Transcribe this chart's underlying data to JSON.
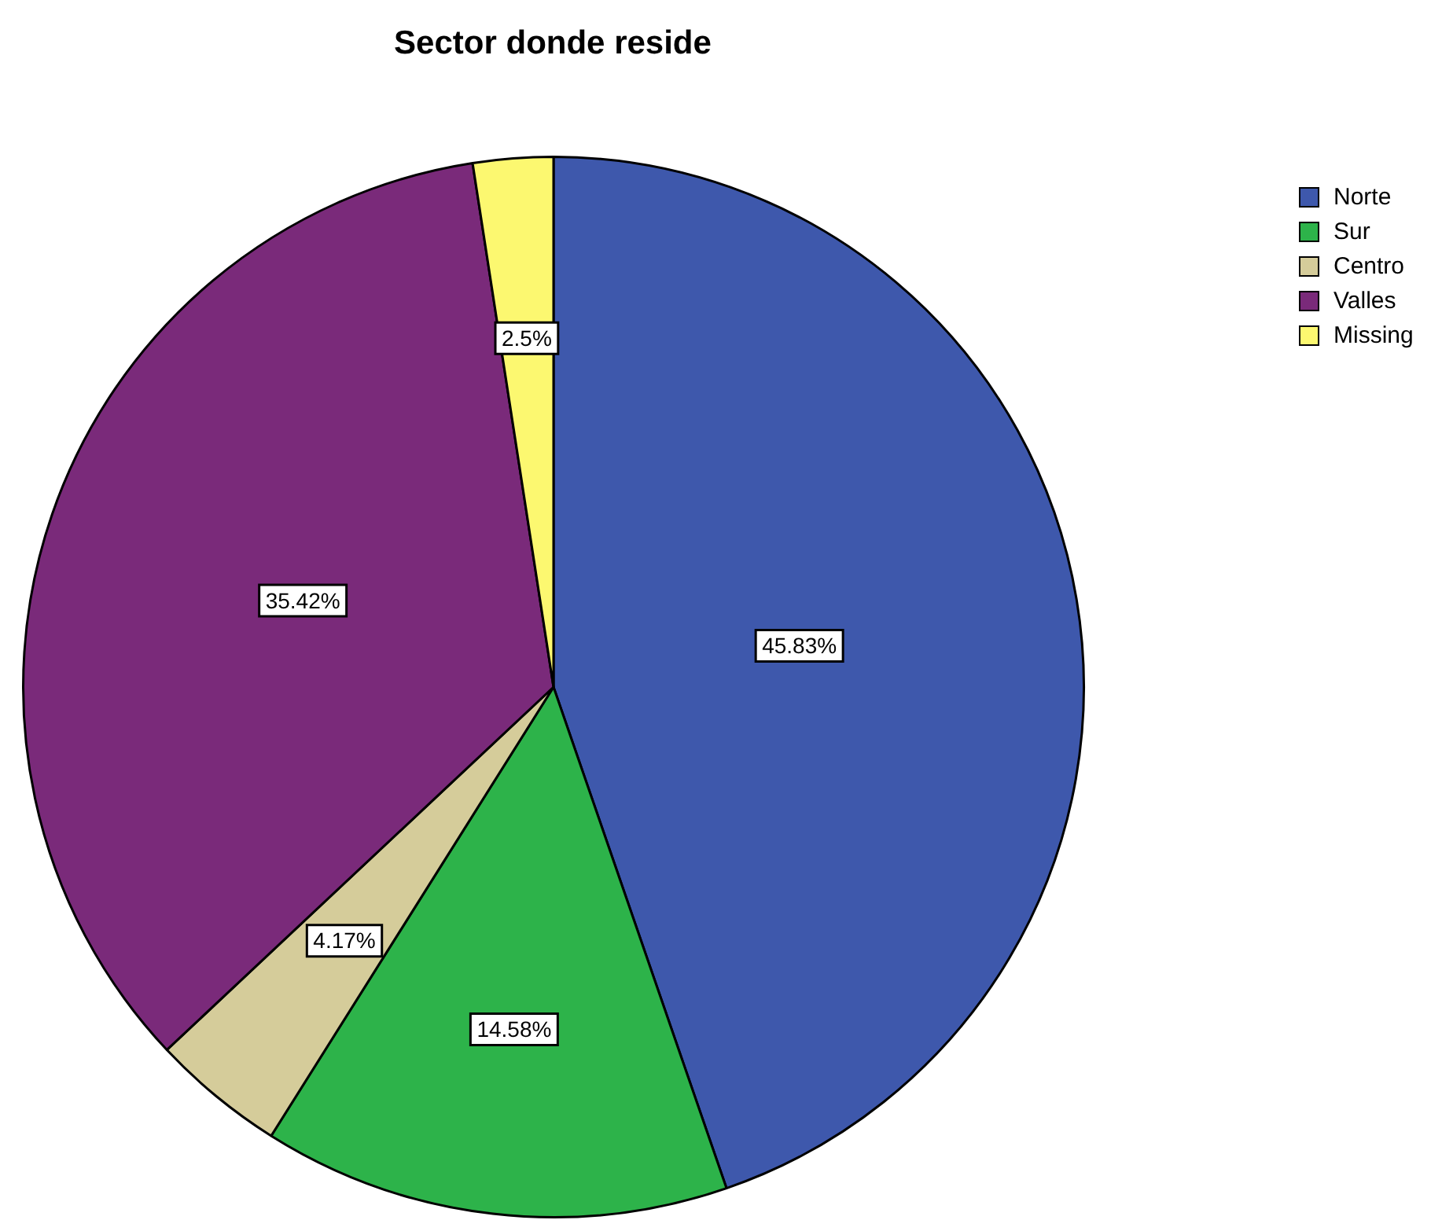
{
  "chart_data": {
    "type": "pie",
    "title": "Sector donde reside",
    "categories": [
      "Norte",
      "Sur",
      "Centro",
      "Valles",
      "Missing"
    ],
    "values": [
      45.83,
      14.58,
      4.17,
      35.42,
      2.5
    ],
    "colors": [
      "#3e58ac",
      "#2db34a",
      "#d5cc9a",
      "#7a2a7a",
      "#fcf870"
    ],
    "value_labels": [
      "45.83%",
      "14.58%",
      "4.17%",
      "35.42%",
      "2.5%"
    ],
    "legend": "top right"
  }
}
